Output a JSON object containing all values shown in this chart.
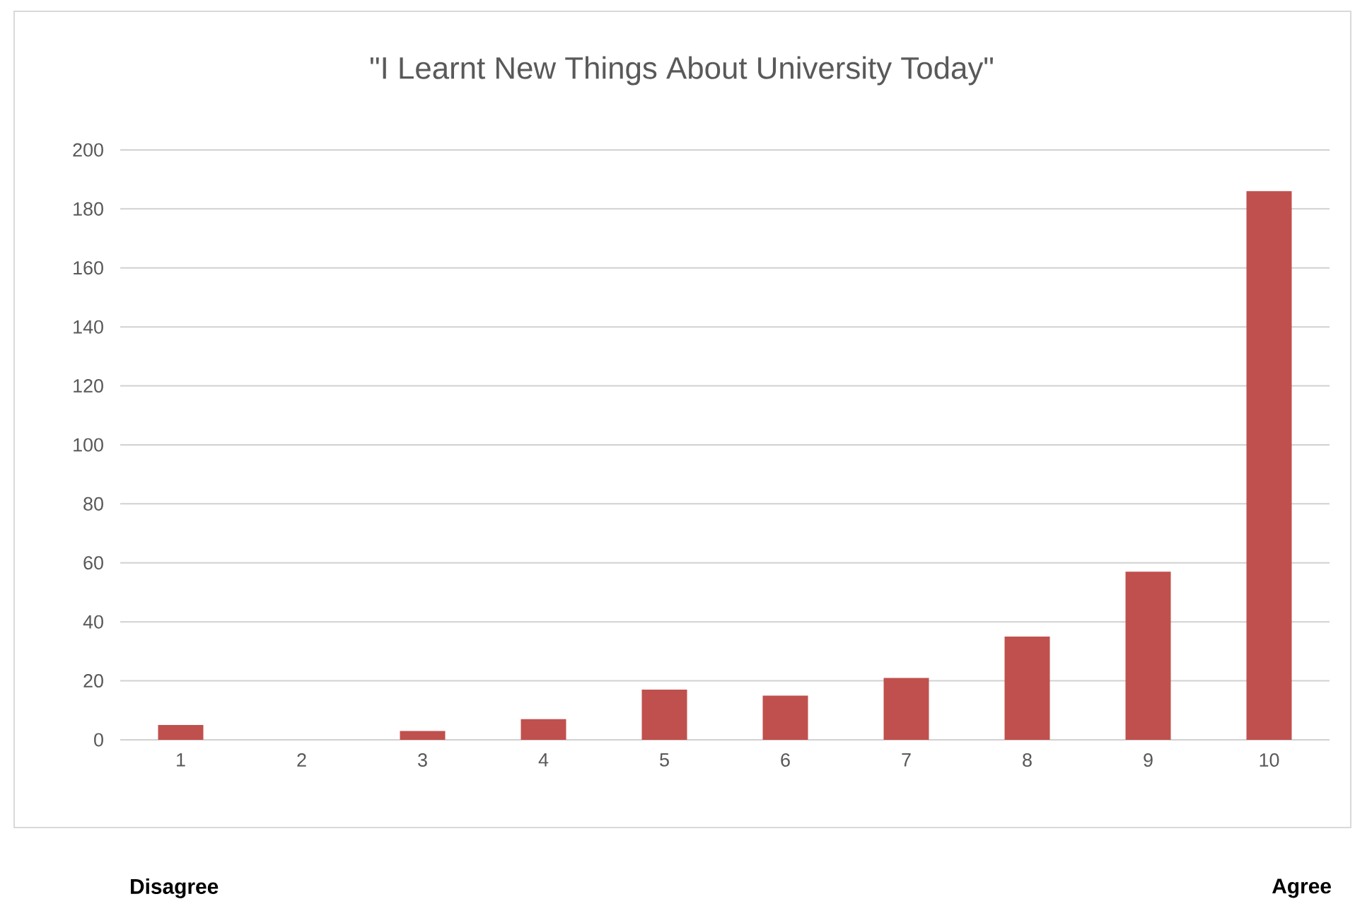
{
  "chart_data": {
    "type": "bar",
    "title": "\"I Learnt New Things About University Today\"",
    "categories": [
      "1",
      "2",
      "3",
      "4",
      "5",
      "6",
      "7",
      "8",
      "9",
      "10"
    ],
    "values": [
      5,
      0,
      3,
      7,
      17,
      15,
      21,
      35,
      57,
      186
    ],
    "color": "#c0504d",
    "ylim": [
      0,
      200
    ],
    "yticks": [
      0,
      20,
      40,
      60,
      80,
      100,
      120,
      140,
      160,
      180,
      200
    ],
    "grid": "y",
    "annotations": [
      "Disagree",
      "Agree"
    ]
  }
}
